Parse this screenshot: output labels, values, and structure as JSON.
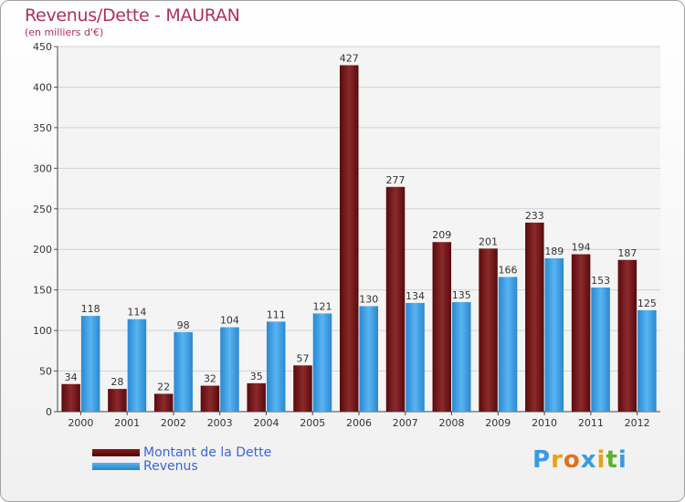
{
  "chart_data": {
    "type": "bar",
    "title": "Revenus/Dette - MAURAN",
    "subtitle": "(en milliers d'€)",
    "categories": [
      "2000",
      "2001",
      "2002",
      "2003",
      "2004",
      "2005",
      "2006",
      "2007",
      "2008",
      "2009",
      "2010",
      "2011",
      "2012"
    ],
    "series": [
      {
        "name": "Montant de la Dette",
        "color": "#7a1a1c",
        "values": [
          34,
          28,
          22,
          32,
          35,
          57,
          427,
          277,
          209,
          201,
          233,
          194,
          187
        ]
      },
      {
        "name": "Revenus",
        "color": "#3a9ae0",
        "values": [
          118,
          114,
          98,
          104,
          111,
          121,
          130,
          134,
          135,
          166,
          189,
          153,
          125
        ]
      }
    ],
    "ylim": [
      0,
      450
    ],
    "yticks": [
      0,
      50,
      100,
      150,
      200,
      250,
      300,
      350,
      400,
      450
    ],
    "grid": true,
    "legend": "bottom-left"
  },
  "legend": {
    "items": [
      {
        "label": "Montant de la Dette",
        "color": "#6b0a0c"
      },
      {
        "label": "Revenus",
        "color": "#3a9ae0"
      }
    ]
  },
  "logo": {
    "letters": [
      {
        "ch": "P",
        "color": "#3a9ae0"
      },
      {
        "ch": "r",
        "color": "#e8a020"
      },
      {
        "ch": "o",
        "color": "#e07020"
      },
      {
        "ch": "x",
        "color": "#3a9ae0"
      },
      {
        "ch": "i",
        "color": "#e8a020"
      },
      {
        "ch": "t",
        "color": "#60b030"
      },
      {
        "ch": "i",
        "color": "#3a9ae0"
      }
    ]
  }
}
